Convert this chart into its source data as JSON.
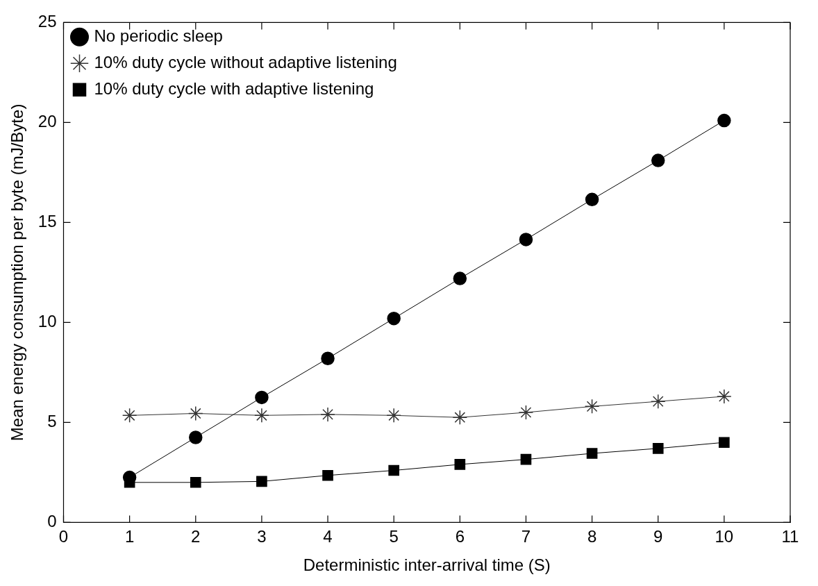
{
  "chart_data": {
    "type": "line",
    "xlabel": "Deterministic inter-arrival time (S)",
    "ylabel": "Mean energy consumption per byte (mJ/Byte)",
    "x": [
      1,
      2,
      3,
      4,
      5,
      6,
      7,
      8,
      9,
      10
    ],
    "series": [
      {
        "name": "No periodic sleep",
        "color": "#000000",
        "marker": "circle",
        "values": [
          2.25,
          4.25,
          6.25,
          8.2,
          10.2,
          12.2,
          14.15,
          16.15,
          18.1,
          20.1
        ]
      },
      {
        "name": "10% duty cycle without adaptive listening",
        "color": "#333333",
        "marker": "cross",
        "values": [
          5.35,
          5.45,
          5.35,
          5.4,
          5.35,
          5.25,
          5.5,
          5.8,
          6.05,
          6.3
        ]
      },
      {
        "name": "10% duty cycle with adaptive listening",
        "color": "#000000",
        "marker": "square",
        "values": [
          2.0,
          2.0,
          2.05,
          2.35,
          2.6,
          2.9,
          3.15,
          3.45,
          3.7,
          4.0
        ]
      }
    ],
    "xlim": [
      0,
      11
    ],
    "xticks": [
      0,
      1,
      2,
      3,
      4,
      5,
      6,
      7,
      8,
      9,
      10,
      11
    ],
    "ylim": [
      0,
      25
    ],
    "yticks": [
      0,
      5,
      10,
      15,
      20,
      25
    ],
    "grid": false,
    "legend": "top left",
    "line_style": "solid"
  }
}
